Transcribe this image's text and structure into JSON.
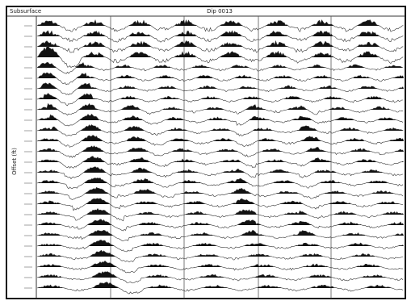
{
  "header": {
    "left": "Subsurface",
    "center": "Dip 0013"
  },
  "axis": {
    "y_label": "Offset (ft)"
  }
}
